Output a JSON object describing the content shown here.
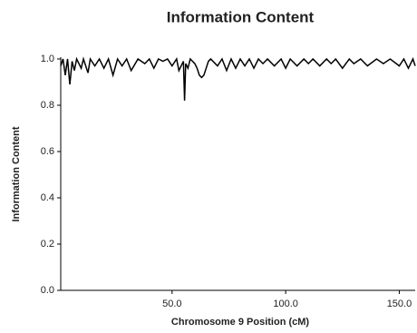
{
  "chart_data": {
    "type": "line",
    "title": "Information Content",
    "xlabel": "Chromosome 9 Position (cM)",
    "ylabel": "Information Content",
    "color": "#000000",
    "x": [
      1,
      2,
      3,
      4,
      5,
      6,
      7,
      8,
      10,
      11,
      13,
      14,
      16,
      18,
      20,
      22,
      24,
      26,
      28,
      30,
      32,
      35,
      38,
      40,
      42,
      44,
      46,
      48,
      50,
      52,
      53,
      54,
      55,
      55.5,
      56,
      57,
      58,
      60,
      61,
      62,
      63,
      64,
      65,
      66,
      67,
      70,
      72,
      74,
      76,
      78,
      80,
      82,
      84,
      86,
      88,
      90,
      92,
      95,
      98,
      100,
      102,
      105,
      108,
      110,
      112,
      115,
      118,
      120,
      122,
      125,
      128,
      130,
      133,
      136,
      140,
      143,
      146,
      150,
      152,
      154,
      156,
      157
    ],
    "values": [
      0.97,
      1,
      0.93,
      1,
      0.89,
      0.99,
      0.95,
      1,
      0.96,
      1,
      0.94,
      1,
      0.97,
      1,
      0.96,
      1,
      0.93,
      1,
      0.97,
      1,
      0.95,
      1,
      0.98,
      1,
      0.96,
      1,
      0.99,
      1,
      0.97,
      1,
      0.95,
      0.97,
      0.99,
      0.82,
      0.98,
      0.96,
      1,
      0.98,
      0.96,
      0.93,
      0.92,
      0.93,
      0.96,
      0.99,
      1,
      0.97,
      1,
      0.95,
      1,
      0.96,
      1,
      0.97,
      1,
      0.96,
      1,
      0.98,
      1,
      0.97,
      1,
      0.96,
      1,
      0.97,
      1,
      0.98,
      1,
      0.97,
      1,
      0.98,
      1,
      0.96,
      1,
      0.98,
      1,
      0.97,
      1,
      0.98,
      1,
      0.97,
      1,
      0.96,
      1,
      0.97
    ],
    "xlim": [
      1,
      157
    ],
    "xticks": [
      {
        "value": 50,
        "label": "50.0"
      },
      {
        "value": 100,
        "label": "100.0"
      },
      {
        "value": 150,
        "label": "150.0"
      }
    ],
    "ylim": [
      0,
      1
    ],
    "yticks": [
      {
        "value": 0,
        "label": "0.0"
      },
      0.2,
      0.4,
      0.6,
      0.8,
      {
        "value": 1,
        "label": "1.0"
      }
    ]
  }
}
